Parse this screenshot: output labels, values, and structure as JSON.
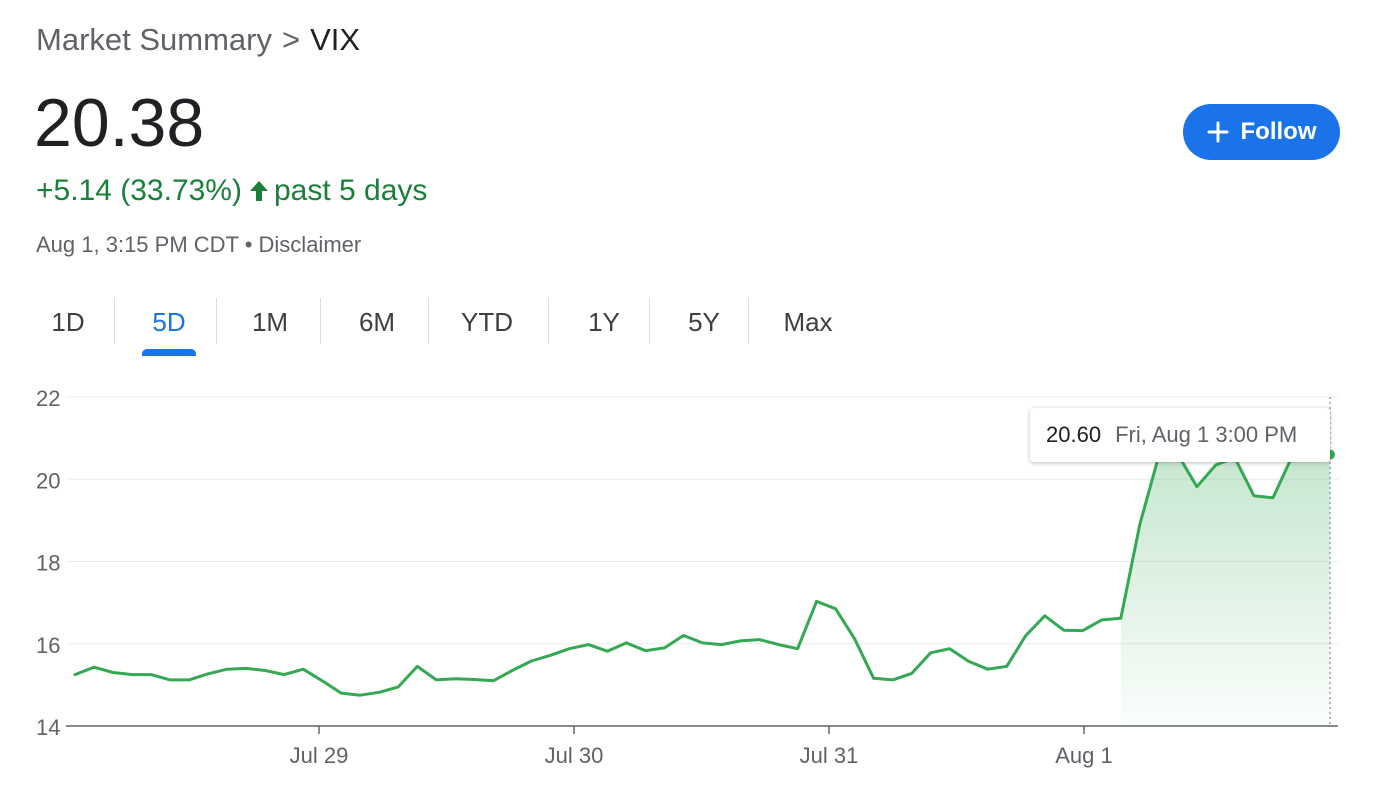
{
  "breadcrumb": {
    "parent": "Market Summary",
    "separator": ">",
    "current": "VIX"
  },
  "quote": {
    "price": "20.38",
    "change": "+5.14 (33.73%)",
    "period": "past 5 days",
    "timestamp": "Aug 1, 3:15 PM CDT",
    "dot": "•",
    "disclaimer": "Disclaimer",
    "change_color": "#188038"
  },
  "follow_button": {
    "label": "Follow",
    "icon": "plus-icon",
    "color": "#1a73e8"
  },
  "tabs": [
    {
      "label": "1D",
      "active": false
    },
    {
      "label": "5D",
      "active": true
    },
    {
      "label": "1M",
      "active": false
    },
    {
      "label": "6M",
      "active": false
    },
    {
      "label": "YTD",
      "active": false
    },
    {
      "label": "1Y",
      "active": false
    },
    {
      "label": "5Y",
      "active": false
    },
    {
      "label": "Max",
      "active": false
    }
  ],
  "tooltip": {
    "value": "20.60",
    "date": "Fri, Aug 1 3:00 PM"
  },
  "chart_data": {
    "type": "area",
    "ylim": [
      14,
      22
    ],
    "y_ticks": [
      "22",
      "20",
      "18",
      "16",
      "14"
    ],
    "x_ticks": [
      "Jul 29",
      "Jul 30",
      "Jul 31",
      "Aug 1"
    ],
    "grid": true,
    "line_color": "#34a853",
    "series": [
      {
        "values": [
          15.25,
          15.43,
          15.3,
          15.25,
          15.25,
          15.12,
          15.12,
          15.27,
          15.38,
          15.4,
          15.35,
          15.25,
          15.38,
          15.1,
          14.8,
          14.75,
          14.82,
          14.95,
          15.45,
          15.12,
          15.15,
          15.13,
          15.1,
          15.35,
          15.58,
          15.72,
          15.88,
          15.98,
          15.82,
          16.02,
          15.83,
          15.9,
          16.2,
          16.02,
          15.98,
          16.07,
          16.1,
          15.98,
          15.88,
          17.03,
          16.85,
          16.12,
          15.16,
          15.12,
          15.28,
          15.78,
          15.88,
          15.57,
          15.38,
          15.45,
          16.2,
          16.68,
          16.33,
          16.32,
          16.58,
          16.62,
          18.9,
          20.58,
          20.6,
          19.82,
          20.35,
          20.52,
          19.6,
          19.55,
          20.55,
          20.58,
          20.6
        ]
      }
    ]
  }
}
